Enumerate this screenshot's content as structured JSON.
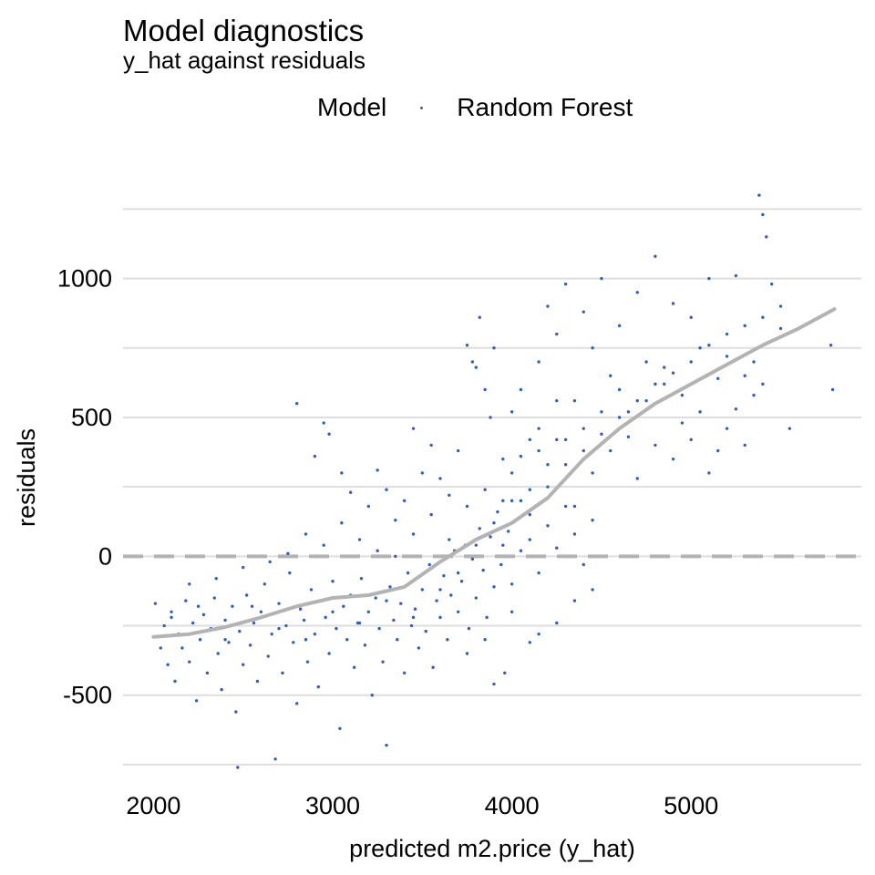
{
  "chart_data": {
    "type": "scatter",
    "title": "Model diagnostics",
    "subtitle": "y_hat against residuals",
    "xlabel": "predicted m2.price (y_hat)",
    "ylabel": "residuals",
    "xlim": [
      1830,
      5950
    ],
    "ylim": [
      -770,
      1330
    ],
    "x_ticks": [
      2000,
      3000,
      4000,
      5000
    ],
    "x_tick_labels": [
      "2000",
      "3000",
      "4000",
      "5000"
    ],
    "y_ticks": [
      -500,
      0,
      500,
      1000
    ],
    "y_tick_labels": [
      "-500",
      "0",
      "500",
      "1000"
    ],
    "y_minor_grid": [
      -750,
      -250,
      250,
      750,
      1250
    ],
    "grid": "horizontal",
    "legend": {
      "title": "Model",
      "placement": "top",
      "entries": [
        "Random Forest"
      ]
    },
    "reference_line": {
      "y": 0,
      "style": "dashed",
      "color": "#b3b3b3"
    },
    "smooth_line": {
      "color": "#b3b3b3",
      "x": [
        2000,
        2200,
        2400,
        2600,
        2800,
        3000,
        3200,
        3400,
        3600,
        3800,
        4000,
        4200,
        4400,
        4600,
        4800,
        5000,
        5200,
        5400,
        5600,
        5800
      ],
      "y": [
        -290,
        -280,
        -255,
        -220,
        -180,
        -150,
        -140,
        -110,
        -20,
        60,
        120,
        210,
        350,
        460,
        550,
        620,
        690,
        760,
        820,
        890
      ]
    },
    "series": [
      {
        "name": "Random Forest",
        "color": "#3460b4",
        "points": [
          [
            2010,
            -170
          ],
          [
            2040,
            -330
          ],
          [
            2060,
            -250
          ],
          [
            2080,
            -390
          ],
          [
            2100,
            -200
          ],
          [
            2120,
            -450
          ],
          [
            2140,
            -280
          ],
          [
            2160,
            -330
          ],
          [
            2180,
            -160
          ],
          [
            2200,
            -380
          ],
          [
            2220,
            -240
          ],
          [
            2240,
            -520
          ],
          [
            2260,
            -300
          ],
          [
            2280,
            -210
          ],
          [
            2300,
            -420
          ],
          [
            2320,
            -260
          ],
          [
            2340,
            -150
          ],
          [
            2360,
            -350
          ],
          [
            2380,
            -480
          ],
          [
            2400,
            -230
          ],
          [
            2420,
            -310
          ],
          [
            2440,
            -180
          ],
          [
            2460,
            -560
          ],
          [
            2470,
            -760
          ],
          [
            2480,
            -270
          ],
          [
            2500,
            -390
          ],
          [
            2520,
            -140
          ],
          [
            2540,
            -320
          ],
          [
            2560,
            -240
          ],
          [
            2580,
            -450
          ],
          [
            2600,
            -200
          ],
          [
            2620,
            -100
          ],
          [
            2640,
            -360
          ],
          [
            2660,
            -280
          ],
          [
            2680,
            -730
          ],
          [
            2700,
            -170
          ],
          [
            2720,
            -420
          ],
          [
            2740,
            -250
          ],
          [
            2760,
            -60
          ],
          [
            2780,
            -310
          ],
          [
            2800,
            -530
          ],
          [
            2820,
            -190
          ],
          [
            2840,
            -230
          ],
          [
            2860,
            -380
          ],
          [
            2880,
            -120
          ],
          [
            2900,
            -280
          ],
          [
            2920,
            -470
          ],
          [
            2940,
            -160
          ],
          [
            2960,
            -220
          ],
          [
            2980,
            -350
          ],
          [
            3000,
            -90
          ],
          [
            3020,
            -260
          ],
          [
            3040,
            -620
          ],
          [
            3060,
            -180
          ],
          [
            3080,
            -300
          ],
          [
            3100,
            -140
          ],
          [
            3120,
            -400
          ],
          [
            3140,
            -240
          ],
          [
            3160,
            -80
          ],
          [
            3180,
            -320
          ],
          [
            3200,
            -200
          ],
          [
            3220,
            -500
          ],
          [
            3240,
            -150
          ],
          [
            3260,
            -260
          ],
          [
            3280,
            -380
          ],
          [
            3300,
            -680
          ],
          [
            3320,
            -110
          ],
          [
            3340,
            -230
          ],
          [
            3360,
            -300
          ],
          [
            3380,
            -170
          ],
          [
            3400,
            -420
          ],
          [
            3420,
            -60
          ],
          [
            3440,
            -250
          ],
          [
            3460,
            -190
          ],
          [
            3480,
            -330
          ],
          [
            3500,
            -120
          ],
          [
            3520,
            -270
          ],
          [
            3540,
            -30
          ],
          [
            3560,
            -400
          ],
          [
            3580,
            -160
          ],
          [
            3600,
            -220
          ],
          [
            3620,
            -70
          ],
          [
            3640,
            -300
          ],
          [
            3660,
            -140
          ],
          [
            3680,
            20
          ],
          [
            3700,
            -200
          ],
          [
            3720,
            -90
          ],
          [
            3740,
            40
          ],
          [
            3760,
            -260
          ],
          [
            3780,
            -10
          ],
          [
            3800,
            -150
          ],
          [
            3820,
            100
          ],
          [
            3840,
            -50
          ],
          [
            3860,
            -220
          ],
          [
            3880,
            70
          ],
          [
            3900,
            -110
          ],
          [
            3920,
            160
          ],
          [
            3940,
            -30
          ],
          [
            3960,
            -420
          ],
          [
            3980,
            90
          ],
          [
            2800,
            550
          ],
          [
            2900,
            360
          ],
          [
            2950,
            480
          ],
          [
            2980,
            440
          ],
          [
            3050,
            300
          ],
          [
            3100,
            230
          ],
          [
            3200,
            180
          ],
          [
            3250,
            310
          ],
          [
            3300,
            240
          ],
          [
            3350,
            130
          ],
          [
            3400,
            200
          ],
          [
            3450,
            460
          ],
          [
            3500,
            300
          ],
          [
            3550,
            400
          ],
          [
            3600,
            280
          ],
          [
            3650,
            220
          ],
          [
            3700,
            380
          ],
          [
            3750,
            760
          ],
          [
            3780,
            700
          ],
          [
            3800,
            680
          ],
          [
            3820,
            860
          ],
          [
            3850,
            600
          ],
          [
            3880,
            500
          ],
          [
            3900,
            750
          ],
          [
            3950,
            350
          ],
          [
            4000,
            520
          ],
          [
            4050,
            600
          ],
          [
            4100,
            420
          ],
          [
            4150,
            700
          ],
          [
            4200,
            900
          ],
          [
            4250,
            800
          ],
          [
            4300,
            980
          ],
          [
            4350,
            560
          ],
          [
            4400,
            880
          ],
          [
            4450,
            750
          ],
          [
            4500,
            1000
          ],
          [
            4550,
            650
          ],
          [
            4600,
            830
          ],
          [
            4650,
            520
          ],
          [
            4700,
            950
          ],
          [
            4750,
            700
          ],
          [
            4800,
            1080
          ],
          [
            4850,
            620
          ],
          [
            4900,
            910
          ],
          [
            4950,
            480
          ],
          [
            5000,
            860
          ],
          [
            5050,
            750
          ],
          [
            5100,
            1000
          ],
          [
            5150,
            380
          ],
          [
            5200,
            720
          ],
          [
            5250,
            1010
          ],
          [
            5300,
            650
          ],
          [
            5350,
            580
          ],
          [
            5380,
            1300
          ],
          [
            5400,
            1230
          ],
          [
            5420,
            1150
          ],
          [
            5450,
            980
          ],
          [
            5500,
            820
          ],
          [
            5550,
            460
          ],
          [
            5780,
            760
          ],
          [
            5790,
            600
          ],
          [
            4000,
            300
          ],
          [
            4050,
            200
          ],
          [
            4100,
            150
          ],
          [
            4150,
            380
          ],
          [
            4200,
            250
          ],
          [
            4250,
            420
          ],
          [
            4300,
            330
          ],
          [
            4350,
            180
          ],
          [
            4400,
            460
          ],
          [
            4450,
            300
          ],
          [
            4500,
            520
          ],
          [
            4550,
            380
          ],
          [
            4600,
            600
          ],
          [
            4650,
            430
          ],
          [
            4700,
            280
          ],
          [
            4750,
            560
          ],
          [
            4800,
            400
          ],
          [
            4850,
            680
          ],
          [
            4900,
            350
          ],
          [
            4950,
            580
          ],
          [
            5000,
            420
          ],
          [
            5050,
            520
          ],
          [
            5100,
            300
          ],
          [
            5150,
            640
          ],
          [
            5200,
            460
          ],
          [
            5250,
            530
          ],
          [
            5300,
            400
          ],
          [
            5350,
            700
          ],
          [
            5400,
            620
          ],
          [
            4000,
            -100
          ],
          [
            4050,
            20
          ],
          [
            4100,
            60
          ],
          [
            4150,
            -60
          ],
          [
            4200,
            110
          ],
          [
            4250,
            30
          ],
          [
            4300,
            180
          ],
          [
            4350,
            80
          ],
          [
            4400,
            -30
          ],
          [
            4450,
            130
          ],
          [
            4150,
            -280
          ],
          [
            4250,
            -240
          ],
          [
            4350,
            -160
          ],
          [
            4450,
            -120
          ],
          [
            3900,
            -460
          ],
          [
            4100,
            -310
          ],
          [
            4000,
            -200
          ],
          [
            3950,
            40
          ],
          [
            3850,
            -300
          ],
          [
            3750,
            -350
          ],
          [
            2200,
            -100
          ],
          [
            2350,
            -80
          ],
          [
            2500,
            -40
          ],
          [
            2650,
            -20
          ],
          [
            2750,
            10
          ],
          [
            2850,
            80
          ],
          [
            2950,
            40
          ],
          [
            3050,
            120
          ],
          [
            3150,
            60
          ],
          [
            3250,
            20
          ],
          [
            3350,
            0
          ],
          [
            3450,
            80
          ],
          [
            3550,
            150
          ],
          [
            3650,
            60
          ],
          [
            3750,
            180
          ],
          [
            3850,
            240
          ],
          [
            3950,
            200
          ],
          [
            4050,
            360
          ],
          [
            4150,
            460
          ],
          [
            4250,
            560
          ],
          [
            2100,
            -220
          ],
          [
            2250,
            -180
          ],
          [
            2400,
            -300
          ],
          [
            2550,
            -180
          ],
          [
            2700,
            -260
          ],
          [
            2850,
            -300
          ],
          [
            3000,
            -200
          ],
          [
            3150,
            -240
          ],
          [
            3300,
            -160
          ],
          [
            3450,
            -220
          ],
          [
            3600,
            -120
          ],
          [
            3700,
            -60
          ],
          [
            3800,
            40
          ],
          [
            3900,
            120
          ],
          [
            4000,
            200
          ],
          [
            4100,
            240
          ],
          [
            4200,
            330
          ],
          [
            4300,
            420
          ],
          [
            4400,
            380
          ],
          [
            4500,
            440
          ],
          [
            4600,
            500
          ],
          [
            4700,
            560
          ],
          [
            4800,
            620
          ],
          [
            4900,
            660
          ],
          [
            5000,
            700
          ],
          [
            5100,
            760
          ],
          [
            5200,
            800
          ],
          [
            5300,
            830
          ],
          [
            5400,
            860
          ],
          [
            5500,
            900
          ]
        ]
      }
    ]
  }
}
